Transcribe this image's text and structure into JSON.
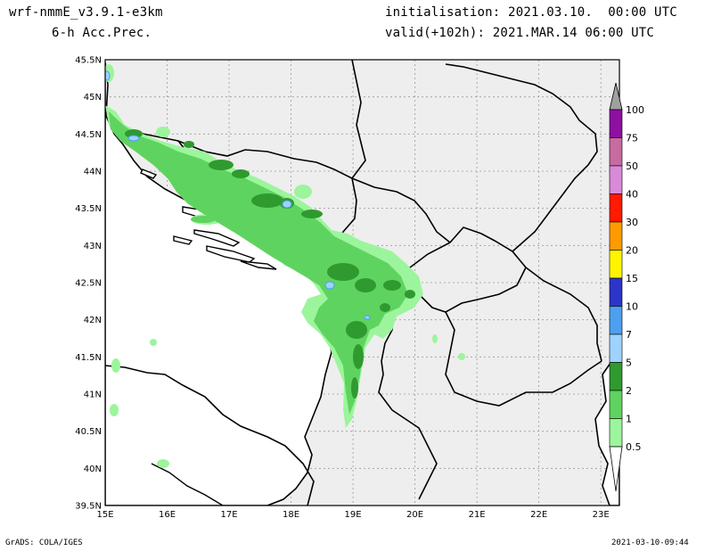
{
  "header": {
    "model": "wrf-nmmE_v3.9.1-e3km",
    "field": "6-h Acc.Prec.",
    "init": "initialisation: 2021.03.10.  00:00 UTC",
    "valid": "valid(+102h): 2021.MAR.14 06:00 UTC"
  },
  "axes": {
    "lat_labels": [
      "45.5N",
      "45N",
      "44.5N",
      "44N",
      "43.5N",
      "43N",
      "42.5N",
      "42N",
      "41.5N",
      "41N",
      "40.5N",
      "40N",
      "39.5N"
    ],
    "lon_labels": [
      "15E",
      "16E",
      "17E",
      "18E",
      "19E",
      "20E",
      "21E",
      "22E",
      "23E"
    ],
    "lat_range": [
      39.5,
      45.5
    ],
    "lon_range": [
      15,
      23.3
    ]
  },
  "colorbar": {
    "labels": [
      "0.5",
      "1",
      "2",
      "5",
      "7",
      "10",
      "15",
      "20",
      "30",
      "40",
      "50",
      "75",
      "100"
    ],
    "colors": [
      "#9cf59c",
      "#5fd35f",
      "#2f9a2f",
      "#9ed2ff",
      "#4d9ff0",
      "#2d34c8",
      "#fff500",
      "#ff9a00",
      "#ff1a00",
      "#d98ad9",
      "#c76ba1",
      "#8e0fa0",
      "#a0a0a0"
    ]
  },
  "footer": {
    "left": "GrADS: COLA/IGES",
    "right": "2021-03-10-09:44"
  }
}
